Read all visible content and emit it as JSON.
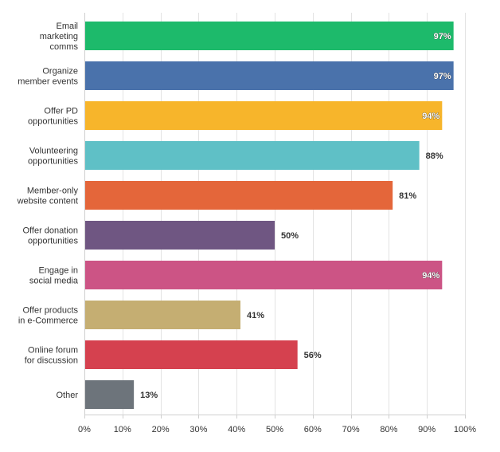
{
  "chart_data": {
    "type": "bar",
    "orientation": "horizontal",
    "categories": [
      [
        "Email",
        "marketing",
        "comms"
      ],
      [
        "Organize",
        "member events"
      ],
      [
        "Offer PD",
        "opportunities"
      ],
      [
        "Volunteering",
        "opportunities"
      ],
      [
        "Member-only",
        "website content"
      ],
      [
        "Offer donation",
        "opportunities"
      ],
      [
        "Engage in",
        "social media"
      ],
      [
        "Offer products",
        "in e-Commerce"
      ],
      [
        "Online forum",
        "for discussion"
      ],
      [
        "Other"
      ]
    ],
    "values": [
      97,
      97,
      94,
      88,
      81,
      50,
      94,
      41,
      56,
      13
    ],
    "value_labels": [
      "97%",
      "97%",
      "94%",
      "88%",
      "81%",
      "50%",
      "94%",
      "41%",
      "56%",
      "13%"
    ],
    "colors": [
      "#1dba6b",
      "#4a72ab",
      "#f7b52b",
      "#5fc0c6",
      "#e4663a",
      "#6f5682",
      "#cc5485",
      "#c5ae72",
      "#d5414f",
      "#6d747b"
    ],
    "xlim": [
      0,
      100
    ],
    "xticks": [
      "0%",
      "10%",
      "20%",
      "30%",
      "40%",
      "50%",
      "60%",
      "70%",
      "80%",
      "90%",
      "100%"
    ],
    "grid": true,
    "title": "",
    "xlabel": "",
    "ylabel": ""
  }
}
